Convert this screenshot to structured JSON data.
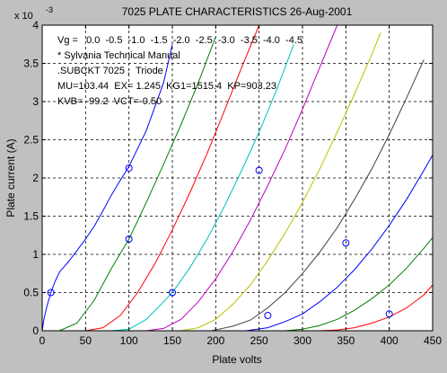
{
  "figure": {
    "background": "#c0c0c0",
    "axes_background": "#ffffff"
  },
  "chart_data": {
    "type": "line",
    "title": "7025 PLATE CHARACTERISTICS  26-Aug-2001",
    "xlabel": "Plate volts",
    "ylabel": "Plate current (A)",
    "y_exponent_label": "x 10",
    "y_exponent_power": "-3",
    "xlim": [
      0,
      450
    ],
    "ylim": [
      0,
      4
    ],
    "x_ticks": [
      0,
      50,
      100,
      150,
      200,
      250,
      300,
      350,
      400,
      450
    ],
    "y_ticks": [
      0,
      0.5,
      1,
      1.5,
      2,
      2.5,
      3,
      3.5,
      4
    ],
    "x_tick_labels": [
      "0",
      "50",
      "100",
      "150",
      "200",
      "250",
      "300",
      "350",
      "400",
      "450"
    ],
    "y_tick_labels": [
      "0",
      "0.5",
      "1",
      "1.5",
      "2",
      "2.5",
      "3",
      "3.5",
      "4"
    ],
    "grid": true,
    "annotations": [
      "Vg =   0.0  -0.5  -1.0  -1.5  -2.0  -2.5  -3.0  -3.5  -4.0  -4.5",
      "* Sylvania Technical Manual",
      ".SUBCKT 7025 ;  Triode",
      "MU=103.44  EX= 1.245  KG1=1515.4  KP=903.23",
      "KVB= -99.2  VCT=-0.50"
    ],
    "series": [
      {
        "color": "#0000ff",
        "x": [
          0,
          2,
          5,
          10,
          15,
          20,
          30,
          40,
          50,
          60,
          70,
          80,
          90,
          100,
          120,
          140,
          150
        ],
        "y": [
          0,
          0.15,
          0.3,
          0.5,
          0.65,
          0.77,
          0.9,
          1.05,
          1.2,
          1.37,
          1.57,
          1.78,
          1.97,
          2.15,
          2.62,
          3.25,
          3.75
        ]
      },
      {
        "color": "#008000",
        "x": [
          20,
          40,
          60,
          80,
          100,
          120,
          140,
          160,
          180,
          200
        ],
        "y": [
          0,
          0.1,
          0.4,
          0.82,
          1.2,
          1.68,
          2.18,
          2.7,
          3.25,
          3.85
        ]
      },
      {
        "color": "#ff0000",
        "x": [
          50,
          70,
          90,
          110,
          130,
          150,
          170,
          190,
          210,
          230,
          250
        ],
        "y": [
          0,
          0.04,
          0.2,
          0.5,
          0.88,
          1.32,
          1.8,
          2.32,
          2.88,
          3.45,
          4.0
        ]
      },
      {
        "color": "#00bfbf",
        "x": [
          80,
          100,
          120,
          140,
          150,
          170,
          190,
          210,
          230,
          250,
          270,
          290
        ],
        "y": [
          0,
          0.02,
          0.15,
          0.38,
          0.5,
          0.82,
          1.2,
          1.63,
          2.1,
          2.6,
          3.15,
          3.75
        ]
      },
      {
        "color": "#bf00bf",
        "x": [
          120,
          140,
          160,
          180,
          200,
          220,
          240,
          260,
          280,
          300,
          320,
          340
        ],
        "y": [
          0,
          0.03,
          0.15,
          0.38,
          0.68,
          1.04,
          1.45,
          1.9,
          2.38,
          2.9,
          3.45,
          4.0
        ]
      },
      {
        "color": "#bfbf00",
        "x": [
          160,
          180,
          200,
          220,
          240,
          260,
          280,
          300,
          320,
          340,
          360,
          380,
          390
        ],
        "y": [
          0,
          0.04,
          0.15,
          0.35,
          0.6,
          0.92,
          1.28,
          1.68,
          2.12,
          2.6,
          3.1,
          3.62,
          3.9
        ]
      },
      {
        "color": "#404040",
        "x": [
          195,
          220,
          240,
          260,
          280,
          300,
          320,
          340,
          360,
          380,
          400,
          420,
          440
        ],
        "y": [
          0,
          0.06,
          0.14,
          0.3,
          0.5,
          0.75,
          1.03,
          1.35,
          1.72,
          2.12,
          2.57,
          3.05,
          3.55
        ]
      },
      {
        "color": "#0000ff",
        "x": [
          235,
          260,
          280,
          300,
          320,
          340,
          360,
          380,
          400,
          420,
          440,
          450
        ],
        "y": [
          0,
          0.04,
          0.12,
          0.22,
          0.38,
          0.57,
          0.8,
          1.07,
          1.38,
          1.72,
          2.1,
          2.3
        ]
      },
      {
        "color": "#008000",
        "x": [
          280,
          300,
          320,
          340,
          360,
          380,
          400,
          420,
          440,
          450
        ],
        "y": [
          0,
          0.02,
          0.07,
          0.15,
          0.27,
          0.42,
          0.6,
          0.82,
          1.08,
          1.22
        ]
      },
      {
        "color": "#ff0000",
        "x": [
          320,
          340,
          360,
          380,
          400,
          420,
          440,
          450
        ],
        "y": [
          0,
          0.01,
          0.04,
          0.1,
          0.18,
          0.3,
          0.47,
          0.6
        ]
      }
    ],
    "markers": [
      {
        "x": 10,
        "y": 0.5
      },
      {
        "x": 100,
        "y": 2.13
      },
      {
        "x": 100,
        "y": 1.2
      },
      {
        "x": 150,
        "y": 0.5
      },
      {
        "x": 250,
        "y": 2.1
      },
      {
        "x": 260,
        "y": 0.2
      },
      {
        "x": 350,
        "y": 1.15
      },
      {
        "x": 400,
        "y": 0.22
      }
    ]
  }
}
